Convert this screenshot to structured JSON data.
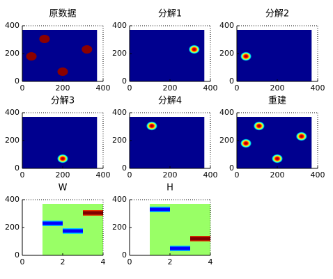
{
  "chart_data": [
    {
      "type": "image",
      "title": "原数据",
      "xlim": [
        0,
        400
      ],
      "ylim": [
        0,
        400
      ],
      "xticks": [
        0,
        200,
        400
      ],
      "yticks": [
        0,
        200,
        400
      ],
      "background": "#00008f",
      "extent_x": [
        0,
        370
      ],
      "extent_y": [
        0,
        370
      ],
      "blob_style": "solid",
      "blob_color": "#8b0000",
      "blobs": {
        "x": [
          110,
          45,
          320,
          200
        ],
        "y": [
          305,
          180,
          230,
          70
        ]
      }
    },
    {
      "type": "image",
      "title": "分解1",
      "xlim": [
        0,
        400
      ],
      "ylim": [
        0,
        400
      ],
      "xticks": [
        0,
        200,
        400
      ],
      "yticks": [
        0,
        200,
        400
      ],
      "background": "#00008f",
      "extent_x": [
        0,
        370
      ],
      "extent_y": [
        0,
        370
      ],
      "blob_style": "smooth",
      "blob_color": "#8b0000",
      "blobs": {
        "x": [
          320
        ],
        "y": [
          230
        ]
      }
    },
    {
      "type": "image",
      "title": "分解2",
      "xlim": [
        0,
        400
      ],
      "ylim": [
        0,
        400
      ],
      "xticks": [
        0,
        200,
        400
      ],
      "yticks": [
        0,
        200,
        400
      ],
      "background": "#00008f",
      "extent_x": [
        0,
        370
      ],
      "extent_y": [
        0,
        370
      ],
      "blob_style": "smooth",
      "blob_color": "#8b0000",
      "blobs": {
        "x": [
          45
        ],
        "y": [
          180
        ]
      }
    },
    {
      "type": "image",
      "title": "分解3",
      "xlim": [
        0,
        400
      ],
      "ylim": [
        0,
        400
      ],
      "xticks": [
        0,
        200,
        400
      ],
      "yticks": [
        0,
        200,
        400
      ],
      "background": "#00008f",
      "extent_x": [
        0,
        370
      ],
      "extent_y": [
        0,
        370
      ],
      "blob_style": "smooth",
      "blob_color": "#8b0000",
      "blobs": {
        "x": [
          200
        ],
        "y": [
          70
        ]
      }
    },
    {
      "type": "image",
      "title": "分解4",
      "xlim": [
        0,
        400
      ],
      "ylim": [
        0,
        400
      ],
      "xticks": [
        0,
        200,
        400
      ],
      "yticks": [
        0,
        200,
        400
      ],
      "background": "#00008f",
      "extent_x": [
        0,
        370
      ],
      "extent_y": [
        0,
        370
      ],
      "blob_style": "smooth",
      "blob_color": "#8b0000",
      "blobs": {
        "x": [
          110
        ],
        "y": [
          305
        ]
      }
    },
    {
      "type": "image",
      "title": "重建",
      "xlim": [
        0,
        400
      ],
      "ylim": [
        0,
        400
      ],
      "xticks": [
        0,
        200,
        400
      ],
      "yticks": [
        0,
        200,
        400
      ],
      "background": "#00008f",
      "extent_x": [
        0,
        370
      ],
      "extent_y": [
        0,
        370
      ],
      "blob_style": "smooth",
      "blob_color": "#8b0000",
      "blobs": {
        "x": [
          110,
          45,
          320,
          200
        ],
        "y": [
          305,
          180,
          230,
          70
        ]
      }
    },
    {
      "type": "bars",
      "title": "W",
      "xlim": [
        0,
        4
      ],
      "ylim": [
        0,
        400
      ],
      "xticks": [
        0,
        2,
        4
      ],
      "yticks": [
        0,
        200,
        400
      ],
      "background": "#99ff66",
      "extent_x": [
        1,
        4
      ],
      "extent_y": [
        0,
        370
      ],
      "x_start": [
        1,
        2,
        3
      ],
      "x_end": [
        2,
        3,
        4
      ],
      "values": [
        230,
        175,
        305
      ],
      "colors": [
        "blue",
        "blue",
        "red"
      ]
    },
    {
      "type": "bars",
      "title": "H",
      "xlim": [
        0,
        4
      ],
      "ylim": [
        0,
        400
      ],
      "xticks": [
        0,
        2,
        4
      ],
      "yticks": [
        0,
        200,
        400
      ],
      "background": "#99ff66",
      "extent_x": [
        1,
        4
      ],
      "extent_y": [
        0,
        370
      ],
      "x_start": [
        1,
        2,
        3
      ],
      "x_end": [
        2,
        3,
        4
      ],
      "values": [
        330,
        50,
        120
      ],
      "colors": [
        "blue",
        "blue",
        "red"
      ]
    }
  ]
}
